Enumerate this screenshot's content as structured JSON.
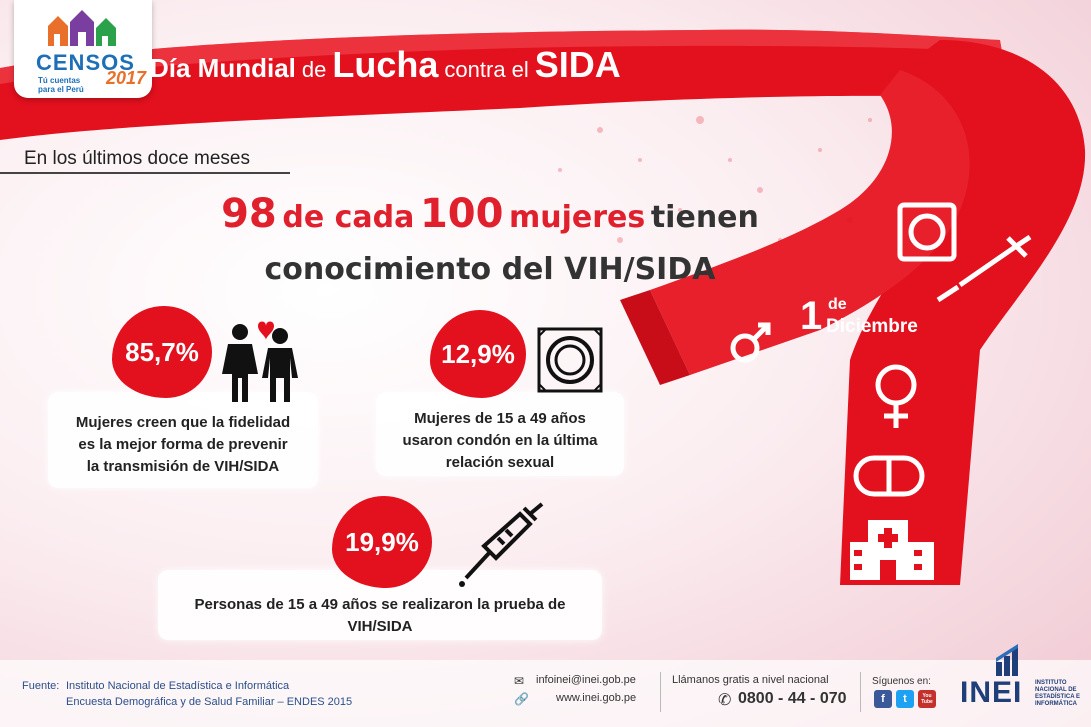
{
  "header": {
    "title_parts": [
      "Día Mundial",
      "de",
      "Lucha",
      "contra el",
      "SIDA"
    ],
    "logo": {
      "word": "CENSOS",
      "year": "2017",
      "tagline": "Tú cuentas para el Perú"
    }
  },
  "subtitle": "En los últimos doce meses",
  "headline": {
    "line1": [
      "98",
      "de cada",
      "100",
      "mujeres",
      "tienen"
    ],
    "line2": "conocimiento del VIH/SIDA"
  },
  "stats": [
    {
      "value": "85,7%",
      "text": [
        "Mujeres creen que la fidelidad",
        "es la mejor forma de prevenir",
        "la transmisión de VIH/SIDA"
      ],
      "icon": "couple-heart-icon"
    },
    {
      "value": "12,9%",
      "text": [
        "Mujeres de 15 a 49 años",
        "usaron condón en la última",
        "relación sexual"
      ],
      "icon": "condom-icon"
    },
    {
      "value": "19,9%",
      "text": [
        "Personas de 15 a 49 años se  realizaron la prueba de",
        "VIH/SIDA"
      ],
      "icon": "syringe-icon"
    }
  ],
  "ribbon": {
    "date_day": "1",
    "date_de": "de",
    "date_month": "Diciembre",
    "icons": [
      "condom-icon",
      "syringe-icon",
      "male-symbol-icon",
      "female-symbol-icon",
      "pill-icon",
      "hospital-icon"
    ]
  },
  "footer": {
    "source_label": "Fuente:",
    "source_lines": [
      "Instituto Nacional de Estadística e Informática",
      "Encuesta Demográfica y de Salud Familiar – ENDES 2015"
    ],
    "email": "infoinei@inei.gob.pe",
    "web": "www.inei.gob.pe",
    "call_label": "Llámanos gratis a nivel nacional",
    "phone": "0800 - 44 - 070",
    "follow_label": "Síguenos en:",
    "social": [
      "f",
      "t",
      "You Tube"
    ],
    "brand": "INEI",
    "brand_sub": "INSTITUTO NACIONAL DE ESTADÍSTICA E INFORMÁTICA"
  },
  "colors": {
    "accent": "#e3101e",
    "ribbon": "#e8202c",
    "navy": "#1f3f78"
  }
}
